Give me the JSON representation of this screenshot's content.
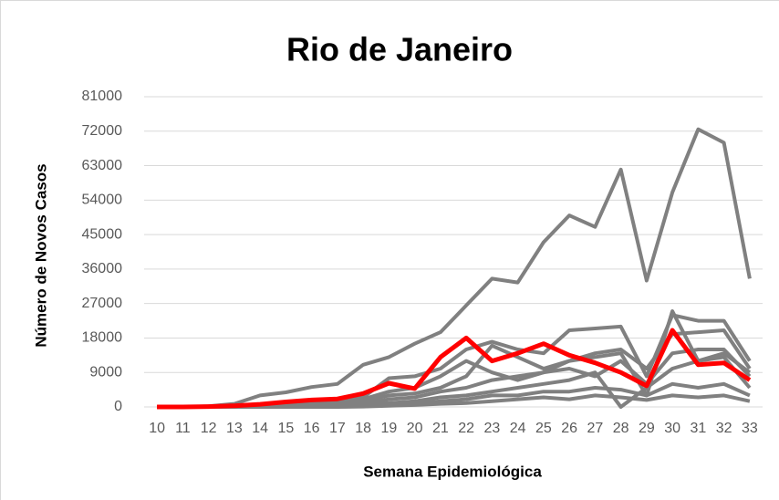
{
  "chart_data": {
    "type": "line",
    "title": "Rio de Janeiro",
    "x_label": "Semana Epidemiológica",
    "y_label": "Número de Novos Casos",
    "categories": [
      "10",
      "11",
      "12",
      "13",
      "14",
      "15",
      "16",
      "17",
      "18",
      "19",
      "20",
      "21",
      "22",
      "23",
      "24",
      "25",
      "26",
      "27",
      "28",
      "29",
      "30",
      "31",
      "32",
      "33"
    ],
    "ylim": [
      0,
      81000
    ],
    "yticks": [
      0,
      9000,
      18000,
      27000,
      36000,
      45000,
      54000,
      63000,
      72000,
      81000
    ],
    "grid": true,
    "series": [
      {
        "color": "#808080",
        "values": [
          0,
          0,
          200,
          800,
          3000,
          3800,
          5200,
          6000,
          11000,
          13000,
          16500,
          19500,
          26500,
          33500,
          32500,
          43000,
          50000,
          47000,
          62000,
          33000,
          56000,
          72500,
          69000,
          33500
        ]
      },
      {
        "color": "#808080",
        "values": [
          0,
          0,
          0,
          100,
          300,
          600,
          1000,
          1500,
          2500,
          7500,
          8000,
          10000,
          15000,
          17000,
          15000,
          14000,
          20000,
          20500,
          21000,
          8000,
          24000,
          22500,
          22500,
          12000
        ]
      },
      {
        "color": "#808080",
        "values": [
          0,
          0,
          0,
          0,
          200,
          400,
          800,
          1200,
          2000,
          4000,
          5000,
          8000,
          12000,
          9000,
          7000,
          9000,
          12000,
          14000,
          15000,
          10000,
          19000,
          19500,
          20000,
          10000
        ]
      },
      {
        "color": "#808080",
        "values": [
          0,
          0,
          0,
          0,
          100,
          200,
          400,
          700,
          1500,
          3000,
          3500,
          5000,
          8000,
          16000,
          13000,
          10000,
          12000,
          13000,
          14000,
          3000,
          25000,
          12000,
          14000,
          9000
        ]
      },
      {
        "color": "#808080",
        "values": [
          0,
          0,
          0,
          0,
          0,
          100,
          200,
          400,
          800,
          2000,
          2500,
          4000,
          5000,
          7000,
          8000,
          9000,
          10000,
          8000,
          12000,
          6000,
          14000,
          15000,
          15000,
          8000
        ]
      },
      {
        "color": "#808080",
        "values": [
          0,
          0,
          0,
          0,
          0,
          0,
          100,
          200,
          500,
          1000,
          1500,
          2500,
          3000,
          4000,
          5000,
          6000,
          7000,
          9000,
          0,
          5000,
          10000,
          12000,
          13000,
          5000
        ]
      },
      {
        "color": "#808080",
        "values": [
          0,
          0,
          0,
          0,
          0,
          0,
          0,
          100,
          300,
          600,
          900,
          1500,
          2000,
          3000,
          3000,
          4000,
          4000,
          5000,
          4500,
          3000,
          6000,
          5000,
          6000,
          3000
        ]
      },
      {
        "color": "#808080",
        "values": [
          0,
          0,
          0,
          0,
          0,
          0,
          0,
          0,
          100,
          300,
          500,
          800,
          1000,
          1500,
          2000,
          2500,
          2000,
          3000,
          2500,
          1800,
          3000,
          2500,
          3000,
          1500
        ]
      },
      {
        "color": "#ff0000",
        "values": [
          0,
          0,
          100,
          300,
          700,
          1300,
          1800,
          2100,
          3500,
          6200,
          4800,
          13000,
          18000,
          12000,
          14000,
          16500,
          13500,
          11500,
          9000,
          5500,
          20000,
          11000,
          11500,
          7000
        ]
      }
    ]
  }
}
